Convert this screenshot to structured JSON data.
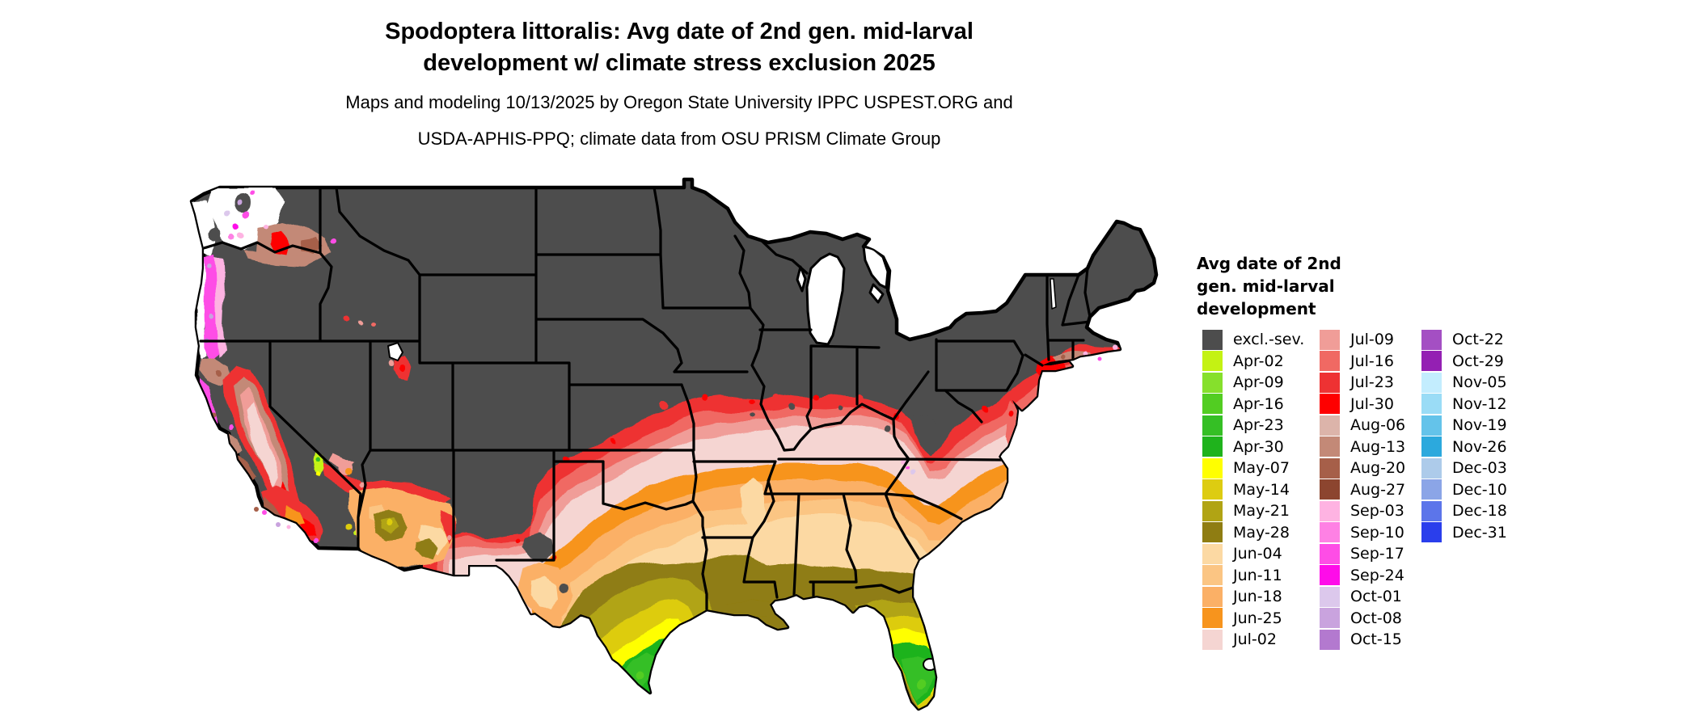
{
  "header": {
    "title_line1": "Spodoptera littoralis: Avg date of 2nd gen. mid-larval",
    "title_line2": "development w/ climate stress exclusion 2025",
    "subtitle_line1": "Maps and modeling 10/13/2025 by Oregon State University IPPC USPEST.ORG and",
    "subtitle_line2": "USDA-APHIS-PPQ; climate data from OSU PRISM Climate Group"
  },
  "legend": {
    "title_lines": [
      "Avg date of 2nd",
      "gen. mid-larval",
      "development"
    ],
    "columns": [
      [
        {
          "label": "excl.-sev.",
          "color": "#4d4d4d"
        },
        {
          "label": "Apr-02",
          "color": "#c4f213"
        },
        {
          "label": "Apr-09",
          "color": "#86e02c"
        },
        {
          "label": "Apr-16",
          "color": "#52cd22"
        },
        {
          "label": "Apr-23",
          "color": "#35bf25"
        },
        {
          "label": "Apr-30",
          "color": "#1fb31c"
        },
        {
          "label": "May-07",
          "color": "#ffff00"
        },
        {
          "label": "May-14",
          "color": "#ddcc11"
        },
        {
          "label": "May-21",
          "color": "#b1a414"
        },
        {
          "label": "May-28",
          "color": "#8f7d12"
        },
        {
          "label": "Jun-04",
          "color": "#fcd9a3"
        },
        {
          "label": "Jun-11",
          "color": "#fbc583"
        },
        {
          "label": "Jun-18",
          "color": "#fbb066"
        },
        {
          "label": "Jun-25",
          "color": "#f7941d"
        },
        {
          "label": "Jul-02",
          "color": "#f5d5d2"
        }
      ],
      [
        {
          "label": "Jul-09",
          "color": "#f09d98"
        },
        {
          "label": "Jul-16",
          "color": "#f06963"
        },
        {
          "label": "Jul-23",
          "color": "#ee3233"
        },
        {
          "label": "Jul-30",
          "color": "#fe0000"
        },
        {
          "label": "Aug-06",
          "color": "#dcb4aa"
        },
        {
          "label": "Aug-13",
          "color": "#c38977"
        },
        {
          "label": "Aug-20",
          "color": "#a65f49"
        },
        {
          "label": "Aug-27",
          "color": "#8c452f"
        },
        {
          "label": "Sep-03",
          "color": "#feb3e2"
        },
        {
          "label": "Sep-10",
          "color": "#fe81e4"
        },
        {
          "label": "Sep-17",
          "color": "#fe4de6"
        },
        {
          "label": "Sep-24",
          "color": "#fe0ce9"
        },
        {
          "label": "Oct-01",
          "color": "#dcc8ec"
        },
        {
          "label": "Oct-08",
          "color": "#c9a3de"
        },
        {
          "label": "Oct-15",
          "color": "#b379cf"
        }
      ],
      [
        {
          "label": "Oct-22",
          "color": "#a44fc3"
        },
        {
          "label": "Oct-29",
          "color": "#9420b3"
        },
        {
          "label": "Nov-05",
          "color": "#c3edfe"
        },
        {
          "label": "Nov-12",
          "color": "#9adcf6"
        },
        {
          "label": "Nov-19",
          "color": "#64c3ea"
        },
        {
          "label": "Nov-26",
          "color": "#2ca9dd"
        },
        {
          "label": "Dec-03",
          "color": "#adcbea"
        },
        {
          "label": "Dec-10",
          "color": "#8ba5e7"
        },
        {
          "label": "Dec-18",
          "color": "#5c75ea"
        },
        {
          "label": "Dec-31",
          "color": "#2a3eec"
        }
      ]
    ]
  }
}
